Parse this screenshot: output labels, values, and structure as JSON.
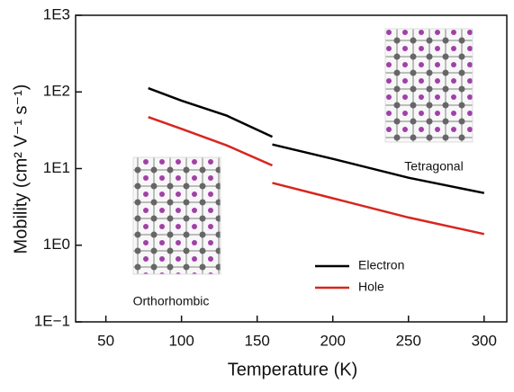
{
  "chart_data": {
    "type": "line",
    "x_label": "Temperature (K)",
    "y_label": "Mobility (cm² V⁻¹ s⁻¹)",
    "annotations": [
      "Orthorhombic",
      "Tetragonal"
    ],
    "x": [
      78,
      100,
      130,
      160,
      160,
      160,
      200,
      250,
      300
    ],
    "series": [
      {
        "name": "Electron",
        "color": "#000000",
        "values": [
          112,
          77,
          49,
          26,
          null,
          20.6,
          13.4,
          7.6,
          4.8
        ]
      },
      {
        "name": "Hole",
        "color": "#d7261e",
        "values": [
          47,
          33,
          20,
          11,
          null,
          6.5,
          4.1,
          2.3,
          1.4
        ]
      }
    ],
    "xlim": [
      30,
      315
    ],
    "xticks": [
      50,
      100,
      150,
      200,
      250,
      300
    ],
    "ylim": [
      0.1,
      1000
    ],
    "log_y": true,
    "yticks": [
      {
        "value": 0.1,
        "label": "1E−1"
      },
      {
        "value": 1,
        "label": "1E0"
      },
      {
        "value": 10,
        "label": "1E1"
      },
      {
        "value": 100,
        "label": "1E2"
      },
      {
        "value": 1000,
        "label": "1E3"
      }
    ],
    "legend": "lower center"
  }
}
